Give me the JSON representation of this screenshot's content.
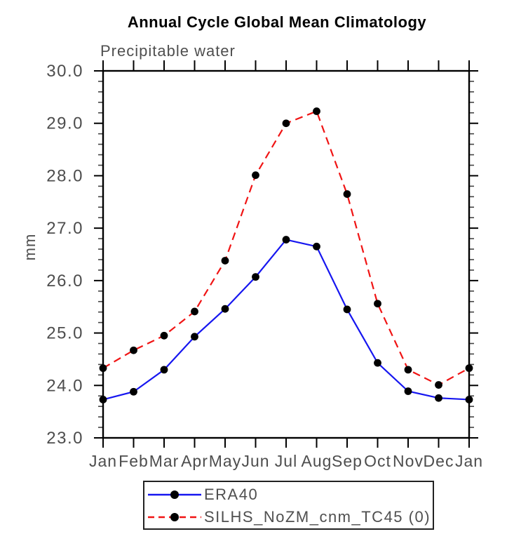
{
  "chart": {
    "title": "Annual Cycle Global Mean Climatology",
    "subtitle": "Precipitable water"
  },
  "chart_data": {
    "type": "line",
    "title": "Annual Cycle Global Mean Climatology",
    "subtitle": "Precipitable water",
    "xlabel": "",
    "ylabel": "mm",
    "x_labels": [
      "Jan",
      "Feb",
      "Mar",
      "Apr",
      "May",
      "Jun",
      "Jul",
      "Aug",
      "Sep",
      "Oct",
      "Nov",
      "Dec",
      "Jan"
    ],
    "ylim": [
      23.0,
      30.0
    ],
    "yticks": [
      23.0,
      24.0,
      25.0,
      26.0,
      27.0,
      28.0,
      29.0,
      30.0
    ],
    "minor_ticks_per_interval": 4,
    "grid": false,
    "legend_position": "bottom-center",
    "series": [
      {
        "name": "ERA40",
        "color": "#1616f0",
        "line_style": "solid",
        "marker": "filled-circle",
        "marker_color": "#000000",
        "values": [
          23.73,
          23.88,
          24.3,
          24.93,
          25.46,
          26.07,
          26.78,
          26.65,
          25.45,
          24.43,
          23.89,
          23.76,
          23.73
        ]
      },
      {
        "name": "SILHS_NoZM_cnm_TC45 (0)",
        "color": "#f01414",
        "line_style": "dashed",
        "marker": "filled-circle",
        "marker_color": "#000000",
        "values": [
          24.33,
          24.67,
          24.95,
          25.41,
          26.38,
          28.01,
          29.0,
          29.23,
          27.65,
          25.56,
          24.3,
          24.01,
          24.33
        ]
      }
    ]
  },
  "colors": {
    "axis": "#000000",
    "minor_tick": "#444444",
    "tick_label": "#4d4d4d",
    "axis_title": "#4f4f4f"
  }
}
